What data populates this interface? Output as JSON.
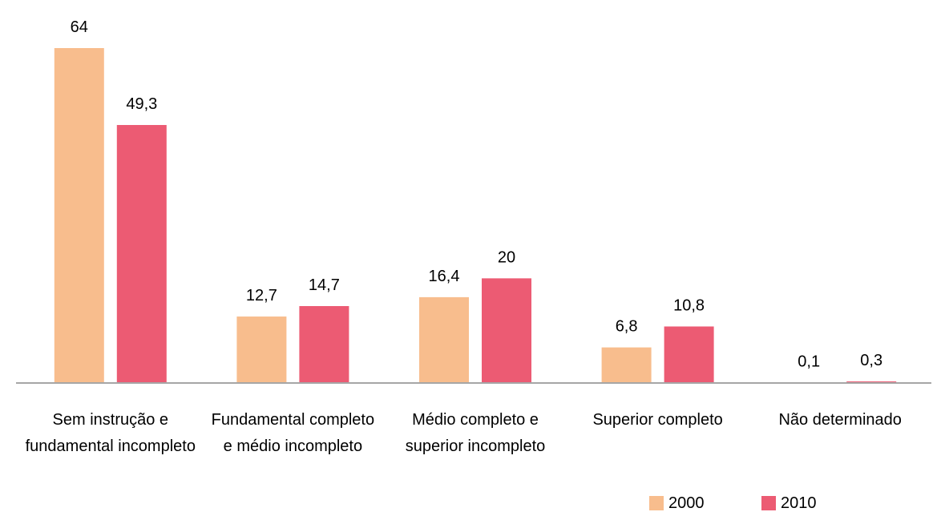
{
  "chart_data": {
    "type": "bar",
    "categories": [
      "Sem instrução e fundamental incompleto",
      "Fundamental completo e médio incompleto",
      "Médio completo e superior incompleto",
      "Superior completo",
      "Não determinado"
    ],
    "series": [
      {
        "name": "2000",
        "color": "#f8bd8d",
        "values": [
          64,
          12.7,
          16.4,
          6.8,
          0.1
        ],
        "value_labels": [
          "64",
          "12,7",
          "16,4",
          "6,8",
          "0,1"
        ]
      },
      {
        "name": "2010",
        "color": "#ec5b73",
        "values": [
          49.3,
          14.7,
          20,
          10.8,
          0.3
        ],
        "value_labels": [
          "49,3",
          "14,7",
          "20",
          "10,8",
          "0,3"
        ]
      }
    ],
    "ylim": [
      0,
      64
    ],
    "legend": "bottom-right"
  }
}
